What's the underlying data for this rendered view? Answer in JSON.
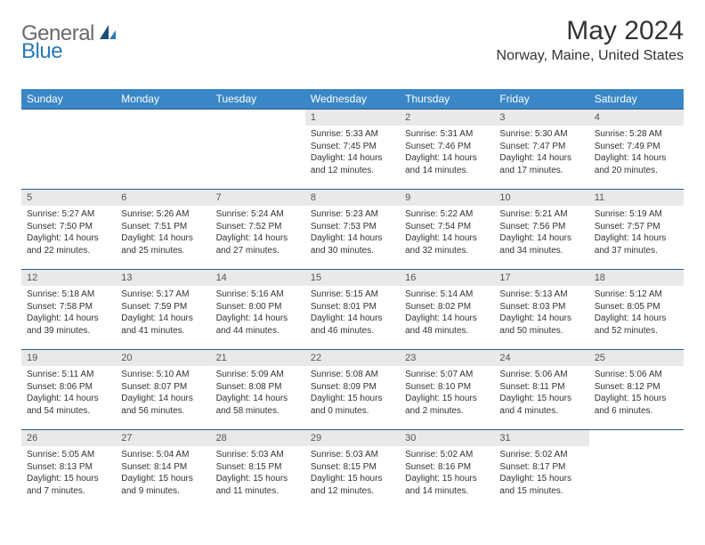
{
  "brand": {
    "general": "General",
    "blue": "Blue"
  },
  "title": "May 2024",
  "location": "Norway, Maine, United States",
  "colors": {
    "header_bg": "#3a87c7",
    "header_text": "#ffffff",
    "daynum_bg": "#e9e9e9",
    "row_border": "#2a5a80",
    "logo_gray": "#6a6a6a",
    "logo_blue": "#2a7ab8",
    "body_text": "#333333",
    "page_bg": "#ffffff"
  },
  "weekdays": [
    "Sunday",
    "Monday",
    "Tuesday",
    "Wednesday",
    "Thursday",
    "Friday",
    "Saturday"
  ],
  "weeks": [
    [
      {
        "empty": true
      },
      {
        "empty": true
      },
      {
        "empty": true
      },
      {
        "day": "1",
        "sunrise": "Sunrise: 5:33 AM",
        "sunset": "Sunset: 7:45 PM",
        "daylight1": "Daylight: 14 hours",
        "daylight2": "and 12 minutes."
      },
      {
        "day": "2",
        "sunrise": "Sunrise: 5:31 AM",
        "sunset": "Sunset: 7:46 PM",
        "daylight1": "Daylight: 14 hours",
        "daylight2": "and 14 minutes."
      },
      {
        "day": "3",
        "sunrise": "Sunrise: 5:30 AM",
        "sunset": "Sunset: 7:47 PM",
        "daylight1": "Daylight: 14 hours",
        "daylight2": "and 17 minutes."
      },
      {
        "day": "4",
        "sunrise": "Sunrise: 5:28 AM",
        "sunset": "Sunset: 7:49 PM",
        "daylight1": "Daylight: 14 hours",
        "daylight2": "and 20 minutes."
      }
    ],
    [
      {
        "day": "5",
        "sunrise": "Sunrise: 5:27 AM",
        "sunset": "Sunset: 7:50 PM",
        "daylight1": "Daylight: 14 hours",
        "daylight2": "and 22 minutes."
      },
      {
        "day": "6",
        "sunrise": "Sunrise: 5:26 AM",
        "sunset": "Sunset: 7:51 PM",
        "daylight1": "Daylight: 14 hours",
        "daylight2": "and 25 minutes."
      },
      {
        "day": "7",
        "sunrise": "Sunrise: 5:24 AM",
        "sunset": "Sunset: 7:52 PM",
        "daylight1": "Daylight: 14 hours",
        "daylight2": "and 27 minutes."
      },
      {
        "day": "8",
        "sunrise": "Sunrise: 5:23 AM",
        "sunset": "Sunset: 7:53 PM",
        "daylight1": "Daylight: 14 hours",
        "daylight2": "and 30 minutes."
      },
      {
        "day": "9",
        "sunrise": "Sunrise: 5:22 AM",
        "sunset": "Sunset: 7:54 PM",
        "daylight1": "Daylight: 14 hours",
        "daylight2": "and 32 minutes."
      },
      {
        "day": "10",
        "sunrise": "Sunrise: 5:21 AM",
        "sunset": "Sunset: 7:56 PM",
        "daylight1": "Daylight: 14 hours",
        "daylight2": "and 34 minutes."
      },
      {
        "day": "11",
        "sunrise": "Sunrise: 5:19 AM",
        "sunset": "Sunset: 7:57 PM",
        "daylight1": "Daylight: 14 hours",
        "daylight2": "and 37 minutes."
      }
    ],
    [
      {
        "day": "12",
        "sunrise": "Sunrise: 5:18 AM",
        "sunset": "Sunset: 7:58 PM",
        "daylight1": "Daylight: 14 hours",
        "daylight2": "and 39 minutes."
      },
      {
        "day": "13",
        "sunrise": "Sunrise: 5:17 AM",
        "sunset": "Sunset: 7:59 PM",
        "daylight1": "Daylight: 14 hours",
        "daylight2": "and 41 minutes."
      },
      {
        "day": "14",
        "sunrise": "Sunrise: 5:16 AM",
        "sunset": "Sunset: 8:00 PM",
        "daylight1": "Daylight: 14 hours",
        "daylight2": "and 44 minutes."
      },
      {
        "day": "15",
        "sunrise": "Sunrise: 5:15 AM",
        "sunset": "Sunset: 8:01 PM",
        "daylight1": "Daylight: 14 hours",
        "daylight2": "and 46 minutes."
      },
      {
        "day": "16",
        "sunrise": "Sunrise: 5:14 AM",
        "sunset": "Sunset: 8:02 PM",
        "daylight1": "Daylight: 14 hours",
        "daylight2": "and 48 minutes."
      },
      {
        "day": "17",
        "sunrise": "Sunrise: 5:13 AM",
        "sunset": "Sunset: 8:03 PM",
        "daylight1": "Daylight: 14 hours",
        "daylight2": "and 50 minutes."
      },
      {
        "day": "18",
        "sunrise": "Sunrise: 5:12 AM",
        "sunset": "Sunset: 8:05 PM",
        "daylight1": "Daylight: 14 hours",
        "daylight2": "and 52 minutes."
      }
    ],
    [
      {
        "day": "19",
        "sunrise": "Sunrise: 5:11 AM",
        "sunset": "Sunset: 8:06 PM",
        "daylight1": "Daylight: 14 hours",
        "daylight2": "and 54 minutes."
      },
      {
        "day": "20",
        "sunrise": "Sunrise: 5:10 AM",
        "sunset": "Sunset: 8:07 PM",
        "daylight1": "Daylight: 14 hours",
        "daylight2": "and 56 minutes."
      },
      {
        "day": "21",
        "sunrise": "Sunrise: 5:09 AM",
        "sunset": "Sunset: 8:08 PM",
        "daylight1": "Daylight: 14 hours",
        "daylight2": "and 58 minutes."
      },
      {
        "day": "22",
        "sunrise": "Sunrise: 5:08 AM",
        "sunset": "Sunset: 8:09 PM",
        "daylight1": "Daylight: 15 hours",
        "daylight2": "and 0 minutes."
      },
      {
        "day": "23",
        "sunrise": "Sunrise: 5:07 AM",
        "sunset": "Sunset: 8:10 PM",
        "daylight1": "Daylight: 15 hours",
        "daylight2": "and 2 minutes."
      },
      {
        "day": "24",
        "sunrise": "Sunrise: 5:06 AM",
        "sunset": "Sunset: 8:11 PM",
        "daylight1": "Daylight: 15 hours",
        "daylight2": "and 4 minutes."
      },
      {
        "day": "25",
        "sunrise": "Sunrise: 5:06 AM",
        "sunset": "Sunset: 8:12 PM",
        "daylight1": "Daylight: 15 hours",
        "daylight2": "and 6 minutes."
      }
    ],
    [
      {
        "day": "26",
        "sunrise": "Sunrise: 5:05 AM",
        "sunset": "Sunset: 8:13 PM",
        "daylight1": "Daylight: 15 hours",
        "daylight2": "and 7 minutes."
      },
      {
        "day": "27",
        "sunrise": "Sunrise: 5:04 AM",
        "sunset": "Sunset: 8:14 PM",
        "daylight1": "Daylight: 15 hours",
        "daylight2": "and 9 minutes."
      },
      {
        "day": "28",
        "sunrise": "Sunrise: 5:03 AM",
        "sunset": "Sunset: 8:15 PM",
        "daylight1": "Daylight: 15 hours",
        "daylight2": "and 11 minutes."
      },
      {
        "day": "29",
        "sunrise": "Sunrise: 5:03 AM",
        "sunset": "Sunset: 8:15 PM",
        "daylight1": "Daylight: 15 hours",
        "daylight2": "and 12 minutes."
      },
      {
        "day": "30",
        "sunrise": "Sunrise: 5:02 AM",
        "sunset": "Sunset: 8:16 PM",
        "daylight1": "Daylight: 15 hours",
        "daylight2": "and 14 minutes."
      },
      {
        "day": "31",
        "sunrise": "Sunrise: 5:02 AM",
        "sunset": "Sunset: 8:17 PM",
        "daylight1": "Daylight: 15 hours",
        "daylight2": "and 15 minutes."
      },
      {
        "empty": true
      }
    ]
  ]
}
